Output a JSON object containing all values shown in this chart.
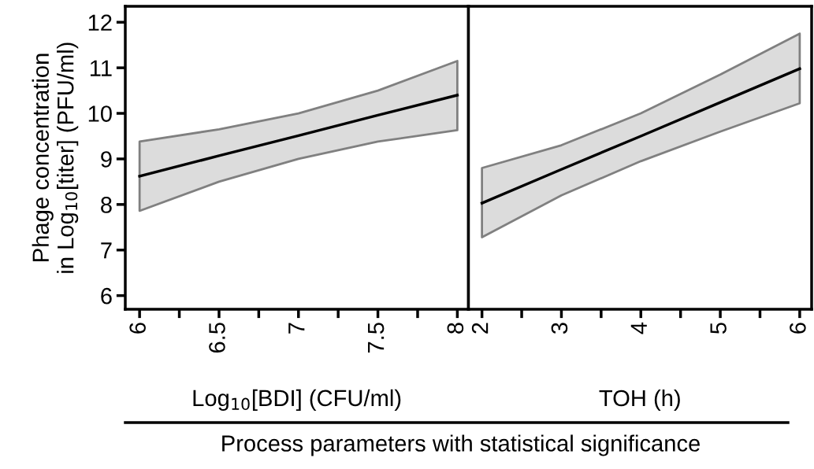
{
  "chart_data": [
    {
      "type": "line",
      "xlabel": "Log$_{10}$[BDI] (CFU/ml)",
      "ylabel": "Phage concentration\nin Log$_{10}$[titer] (PFU/ml)",
      "xlim": [
        5.91,
        8.07
      ],
      "xticks": [
        6,
        {
          "value": 6.25,
          "label": null
        },
        6.5,
        {
          "value": 6.75,
          "label": null
        },
        7,
        {
          "value": 7.25,
          "label": null
        },
        7.5,
        {
          "value": 7.75,
          "label": null
        },
        8
      ],
      "ylim": [
        5.7,
        12.35
      ],
      "yticks": [
        6,
        7,
        8,
        9,
        10,
        11,
        12
      ],
      "grid": false,
      "legend": false,
      "series": [
        {
          "color": "#000000",
          "x": [
            6,
            6.5,
            7,
            7.5,
            8
          ],
          "values": [
            8.62,
            9.07,
            9.51,
            9.96,
            10.4
          ],
          "lower": [
            7.86,
            8.5,
            9.0,
            9.38,
            9.63
          ],
          "upper": [
            9.38,
            9.65,
            10.0,
            10.5,
            11.15
          ]
        }
      ]
    },
    {
      "type": "line",
      "xlabel": "TOH (h)",
      "tick_labels": "x",
      "xlim": [
        1.83,
        6.15
      ],
      "xticks": [
        2,
        {
          "value": 2.5,
          "label": null
        },
        3,
        {
          "value": 3.5,
          "label": null
        },
        4,
        {
          "value": 4.5,
          "label": null
        },
        5,
        {
          "value": 5.5,
          "label": null
        },
        6
      ],
      "ylim": [
        5.7,
        12.35
      ],
      "grid": false,
      "legend": false,
      "annotations": [
        "Process parameters with statistical significance"
      ],
      "series": [
        {
          "color": "#000000",
          "x": [
            2,
            3,
            4,
            5,
            6
          ],
          "values": [
            8.03,
            8.77,
            9.5,
            10.24,
            10.98
          ],
          "lower": [
            7.28,
            8.2,
            8.95,
            9.6,
            10.22
          ],
          "upper": [
            8.8,
            9.3,
            10.0,
            10.85,
            11.75
          ]
        }
      ]
    }
  ]
}
